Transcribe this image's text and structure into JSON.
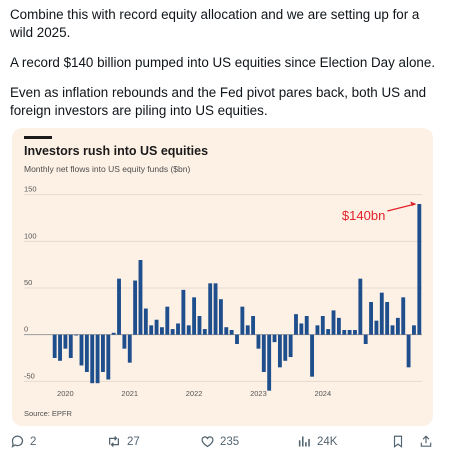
{
  "post": {
    "paragraphs": [
      "Combine this with record equity allocation and we are setting up for a wild 2025.",
      "A record $140 billion pumped into US equities since Election Day alone.",
      "Even as inflation rebounds and the Fed pivot pares back, both US and foreign investors are piling into US equities."
    ]
  },
  "card": {
    "title": "Investors rush into US equities",
    "subtitle": "Monthly net flows into US equity funds ($bn)",
    "source": "Source: EPFR",
    "annotation": "$140bn"
  },
  "colors": {
    "bar": "#1f4e8c",
    "annotation": "#e3202a",
    "card_background": "#fdf1e6",
    "text": "#0f1419",
    "action": "#536471"
  },
  "chart_data": {
    "type": "bar",
    "title": "Investors rush into US equities",
    "subtitle": "Monthly net flows into US equity funds ($bn)",
    "xlabel": "",
    "ylabel": "",
    "ylim": [
      -55,
      155
    ],
    "yticks": [
      150,
      100,
      50,
      0,
      -50
    ],
    "xtick_labels": [
      "2020",
      "2021",
      "2022",
      "2023",
      "2024"
    ],
    "xtick_positions": [
      2,
      14,
      26,
      38,
      50
    ],
    "grid": true,
    "annotation": "$140bn",
    "values": [
      -25,
      -28,
      -15,
      -25,
      0,
      -33,
      -40,
      -52,
      -52,
      -40,
      -48,
      2,
      60,
      -15,
      -30,
      58,
      80,
      28,
      10,
      16,
      8,
      30,
      6,
      12,
      48,
      10,
      40,
      20,
      6,
      55,
      55,
      38,
      8,
      5,
      -10,
      30,
      10,
      20,
      -15,
      -40,
      -60,
      -8,
      -35,
      -28,
      -24,
      22,
      12,
      20,
      -45,
      10,
      20,
      6,
      26,
      18,
      5,
      5,
      5,
      60,
      -10,
      35,
      15,
      45,
      35,
      10,
      18,
      40,
      -35,
      10,
      140
    ]
  },
  "actions": {
    "reply_count": "2",
    "repost_count": "27",
    "like_count": "235",
    "view_count": "24K"
  }
}
